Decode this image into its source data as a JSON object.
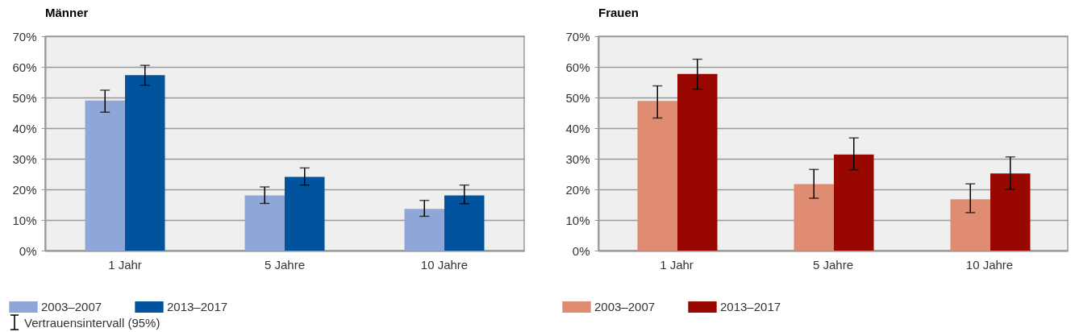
{
  "chart_data": [
    {
      "type": "bar",
      "title": "Männer",
      "categories": [
        "1 Jahr",
        "5 Jahre",
        "10 Jahre"
      ],
      "ylim": [
        0,
        70
      ],
      "yticks": [
        {
          "value": 0,
          "label": "0%"
        },
        {
          "value": 10,
          "label": "10%"
        },
        {
          "value": 20,
          "label": "20%"
        },
        {
          "value": 30,
          "label": "30%"
        },
        {
          "value": 40,
          "label": "40%"
        },
        {
          "value": 50,
          "label": "50%"
        },
        {
          "value": 60,
          "label": "60%"
        },
        {
          "value": 70,
          "label": "70%"
        }
      ],
      "grid": "y",
      "legend": "bottom",
      "annotations": [
        "Vertrauensintervall (95%)"
      ],
      "series": [
        {
          "name": "2003–2007",
          "color": "#8ea7d8",
          "values": [
            49,
            18,
            13.6
          ],
          "errors": [
            [
              45.2,
              52.4
            ],
            [
              15.4,
              20.8
            ],
            [
              11.2,
              16.4
            ]
          ]
        },
        {
          "name": "2013–2017",
          "color": "#00539c",
          "values": [
            57.3,
            24.1,
            18
          ],
          "errors": [
            [
              54,
              60.5
            ],
            [
              21.4,
              27
            ],
            [
              15.3,
              21.4
            ]
          ]
        }
      ]
    },
    {
      "type": "bar",
      "title": "Frauen",
      "categories": [
        "1 Jahr",
        "5 Jahre",
        "10 Jahre"
      ],
      "ylim": [
        0,
        70
      ],
      "yticks": [
        {
          "value": 0,
          "label": "0%"
        },
        {
          "value": 10,
          "label": "10%"
        },
        {
          "value": 20,
          "label": "20%"
        },
        {
          "value": 30,
          "label": "30%"
        },
        {
          "value": 40,
          "label": "40%"
        },
        {
          "value": 50,
          "label": "50%"
        },
        {
          "value": 60,
          "label": "60%"
        },
        {
          "value": 70,
          "label": "70%"
        }
      ],
      "grid": "y",
      "legend": "bottom",
      "series": [
        {
          "name": "2003–2007",
          "color": "#e08c72",
          "values": [
            48.9,
            21.7,
            16.8
          ],
          "errors": [
            [
              43.3,
              53.8
            ],
            [
              17.1,
              26.5
            ],
            [
              12.4,
              21.8
            ]
          ]
        },
        {
          "name": "2013–2017",
          "color": "#990800",
          "values": [
            57.7,
            31.4,
            25.2
          ],
          "errors": [
            [
              52.7,
              62.5
            ],
            [
              26.4,
              36.8
            ],
            [
              20,
              30.6
            ]
          ]
        }
      ]
    }
  ]
}
